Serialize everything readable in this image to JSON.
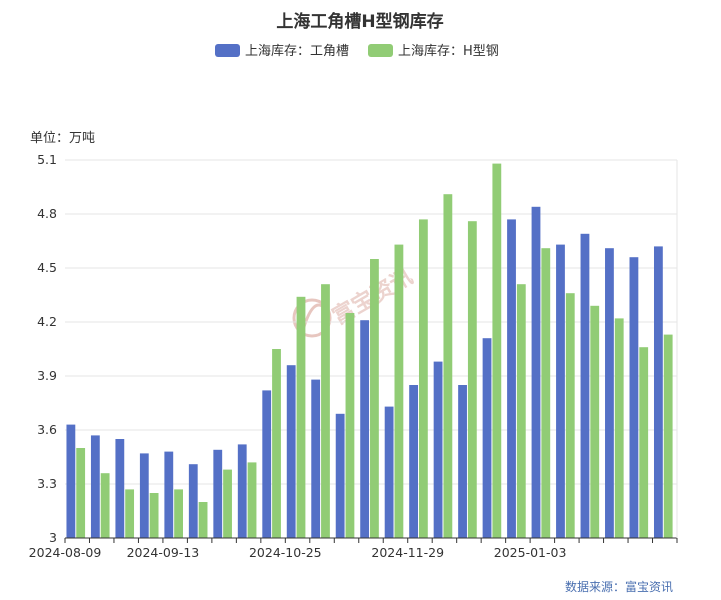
{
  "chart_data": {
    "type": "bar",
    "title": "上海工角槽H型钢库存",
    "unit_label": "单位：万吨",
    "x_tick_labels": [
      "2024-08-09",
      "2024-09-13",
      "2024-10-25",
      "2024-11-29",
      "2025-01-03"
    ],
    "x_tick_indices": [
      0,
      4,
      9,
      14,
      19
    ],
    "categories_count": 25,
    "ylim": [
      3,
      5.1
    ],
    "y_ticks": [
      3,
      3.3,
      3.6,
      3.9,
      4.2,
      4.5,
      4.8,
      5.1
    ],
    "y_tick_labels": [
      "3",
      "3.3",
      "3.6",
      "3.9",
      "4.2",
      "4.5",
      "4.8",
      "5.1"
    ],
    "legend_position": "top-center",
    "grid": true,
    "series": [
      {
        "name": "上海库存：工角槽",
        "color": "#5470c6",
        "values": [
          3.63,
          3.57,
          3.55,
          3.47,
          3.48,
          3.41,
          3.49,
          3.52,
          3.82,
          3.96,
          3.88,
          3.69,
          4.21,
          3.73,
          3.85,
          3.98,
          3.85,
          4.11,
          4.77,
          4.84,
          4.63,
          4.69,
          4.61,
          4.56,
          4.62
        ]
      },
      {
        "name": "上海库存：H型钢",
        "color": "#91cc75",
        "values": [
          3.5,
          3.36,
          3.27,
          3.25,
          3.27,
          3.2,
          3.38,
          3.42,
          4.05,
          4.34,
          4.41,
          4.25,
          4.55,
          4.63,
          4.77,
          4.91,
          4.76,
          5.08,
          4.41,
          4.61,
          4.36,
          4.29,
          4.22,
          4.06,
          4.13
        ]
      }
    ],
    "source": "数据来源：富宝资讯",
    "watermark": "富宝资讯"
  }
}
